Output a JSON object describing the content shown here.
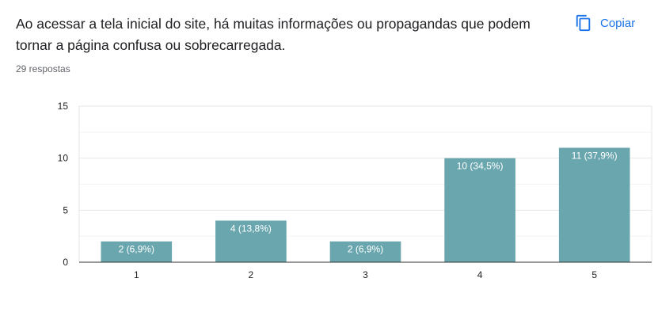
{
  "question": {
    "title": "Ao acessar a tela inicial do site, há muitas informações ou propagandas que podem tornar a página confusa ou sobrecarregada.",
    "responses": "29 respostas"
  },
  "actions": {
    "copy_label": "Copiar",
    "copy_icon": "copy-icon"
  },
  "colors": {
    "bar": "#6aa6ae",
    "accent": "#1a73e8"
  },
  "chart_data": {
    "type": "bar",
    "categories": [
      "1",
      "2",
      "3",
      "4",
      "5"
    ],
    "values": [
      2,
      4,
      2,
      10,
      11
    ],
    "data_labels": [
      "2 (6,9%)",
      "4 (13,8%)",
      "2 (6,9%)",
      "10 (34,5%)",
      "11 (37,9%)"
    ],
    "yticks": [
      0,
      5,
      10,
      15
    ],
    "ylim": [
      0,
      15
    ],
    "title": "",
    "xlabel": "",
    "ylabel": "",
    "grid": true
  }
}
